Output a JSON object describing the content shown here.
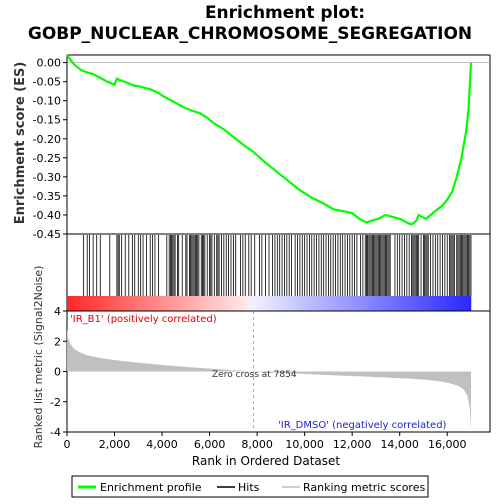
{
  "chart_data": {
    "type": "line",
    "title_line1": "Enrichment plot:",
    "title_line2": "GOBP_NUCLEAR_CHROMOSOME_SEGREGATION",
    "top_panel": {
      "ylabel": "Enrichment score (ES)",
      "ylim": [
        -0.45,
        0.02
      ],
      "yticks": [
        "0.00",
        "-0.05",
        "-0.10",
        "-0.15",
        "-0.20",
        "-0.25",
        "-0.30",
        "-0.35",
        "-0.40",
        "-0.45"
      ],
      "series_name": "Enrichment profile",
      "color": "#00ff00",
      "x": [
        0,
        300,
        600,
        800,
        1100,
        1400,
        1700,
        2000,
        2100,
        2200,
        2500,
        2800,
        3000,
        3200,
        3500,
        3800,
        4100,
        4400,
        4700,
        5000,
        5300,
        5600,
        5900,
        6200,
        6600,
        7000,
        7400,
        7854,
        8300,
        8800,
        9300,
        9800,
        10300,
        10800,
        11200,
        11600,
        12000,
        12300,
        12600,
        12800,
        13100,
        13400,
        13700,
        14000,
        14300,
        14500,
        14700,
        14800,
        15100,
        15300,
        15500,
        15800,
        16000,
        16200,
        16400,
        16600,
        16800,
        16900,
        16950,
        17000
      ],
      "es": [
        0.02,
        -0.005,
        -0.02,
        -0.025,
        -0.03,
        -0.04,
        -0.05,
        -0.058,
        -0.042,
        -0.045,
        -0.052,
        -0.06,
        -0.062,
        -0.065,
        -0.07,
        -0.078,
        -0.09,
        -0.1,
        -0.11,
        -0.12,
        -0.127,
        -0.133,
        -0.145,
        -0.16,
        -0.175,
        -0.195,
        -0.215,
        -0.235,
        -0.26,
        -0.285,
        -0.31,
        -0.335,
        -0.355,
        -0.37,
        -0.385,
        -0.39,
        -0.395,
        -0.41,
        -0.42,
        -0.415,
        -0.41,
        -0.4,
        -0.405,
        -0.41,
        -0.42,
        -0.425,
        -0.415,
        -0.4,
        -0.41,
        -0.4,
        -0.39,
        -0.375,
        -0.36,
        -0.34,
        -0.3,
        -0.25,
        -0.18,
        -0.12,
        -0.06,
        0.0
      ]
    },
    "hits_panel": {
      "label": "Hits",
      "hit_positions": [
        700,
        850,
        950,
        1100,
        1250,
        1400,
        1800,
        2100,
        2150,
        2200,
        2300,
        2450,
        2600,
        2750,
        2850,
        3000,
        3100,
        3200,
        3350,
        3500,
        3600,
        3700,
        3850,
        4200,
        4300,
        4350,
        4400,
        4450,
        4500,
        4550,
        4650,
        4700,
        4850,
        5000,
        5050,
        5150,
        5200,
        5250,
        5300,
        5350,
        5400,
        5450,
        5500,
        5550,
        5650,
        5700,
        5750,
        5800,
        5900,
        6000,
        6050,
        6100,
        6200,
        6300,
        6350,
        6400,
        6500,
        6600,
        6700,
        6800,
        6900,
        7000,
        7100,
        7300,
        7400,
        7500,
        7650,
        7750,
        7900,
        8100,
        8200,
        8350,
        8500,
        8650,
        8750,
        8850,
        8950,
        9050,
        9150,
        9250,
        9350,
        9450,
        9600,
        9700,
        9800,
        9900,
        10000,
        10100,
        10200,
        10300,
        10400,
        10500,
        10600,
        10700,
        10800,
        10900,
        11000,
        11100,
        11200,
        11300,
        11400,
        11500,
        11600,
        11700,
        11800,
        11900,
        12000,
        12100,
        12200,
        12350,
        12450,
        12550,
        12600,
        12650,
        12700,
        12750,
        12800,
        12850,
        12900,
        12950,
        13000,
        13050,
        13100,
        13150,
        13200,
        13250,
        13300,
        13350,
        13400,
        13450,
        13500,
        13550,
        13600,
        13800,
        13900,
        14000,
        14100,
        14200,
        14300,
        14400,
        14500,
        14550,
        14600,
        14650,
        14700,
        14750,
        14800,
        14900,
        15000,
        15050,
        15100,
        15150,
        15200,
        15300,
        15400,
        15500,
        15600,
        15700,
        15800,
        15900,
        16000,
        16100,
        16150,
        16200,
        16250,
        16300,
        16400,
        16450,
        16500,
        16550,
        16600,
        16650,
        16700,
        16750,
        16800,
        16850,
        16900,
        16950,
        17000
      ]
    },
    "metric_panel": {
      "ylabel": "Ranked list metric (Signal2Noise)",
      "ylim": [
        -4,
        4
      ],
      "yticks": [
        "4",
        "2",
        "0",
        "-2",
        "-4"
      ],
      "fill_color": "#c0c0c0",
      "x": [
        0,
        50,
        150,
        300,
        500,
        800,
        1200,
        1700,
        2300,
        3000,
        3800,
        4600,
        5400,
        6200,
        7000,
        7854,
        8500,
        9500,
        10500,
        11500,
        12500,
        13500,
        14500,
        15200,
        15800,
        16200,
        16500,
        16700,
        16850,
        16950,
        17000
      ],
      "values": [
        2.8,
        2.2,
        1.8,
        1.5,
        1.3,
        1.1,
        0.95,
        0.82,
        0.7,
        0.58,
        0.46,
        0.36,
        0.26,
        0.17,
        0.08,
        0.0,
        -0.06,
        -0.13,
        -0.2,
        -0.27,
        -0.33,
        -0.4,
        -0.48,
        -0.56,
        -0.68,
        -0.82,
        -0.98,
        -1.2,
        -1.6,
        -2.4,
        -3.9
      ],
      "pos_label": "'IR_B1' (positively correlated)",
      "neg_label": "'IR_DMSO' (negatively correlated)",
      "zero_cross_label": "Zero cross at 7854",
      "zero_cross": 7854
    },
    "xaxis": {
      "xlabel": "Rank in Ordered Dataset",
      "xlim": [
        0,
        17800
      ],
      "xticks": [
        0,
        2000,
        4000,
        6000,
        8000,
        10000,
        12000,
        14000,
        16000
      ],
      "xtick_labels": [
        "0",
        "2,000",
        "4,000",
        "6,000",
        "8,000",
        "10,000",
        "12,000",
        "14,000",
        "16,000"
      ]
    },
    "legend": {
      "items": [
        "Enrichment profile",
        "Hits",
        "Ranking metric scores"
      ],
      "placement": "bottom"
    },
    "colors": {
      "positive": "#ff0000",
      "negative": "#0000ff",
      "es_line": "#00ff00"
    }
  }
}
